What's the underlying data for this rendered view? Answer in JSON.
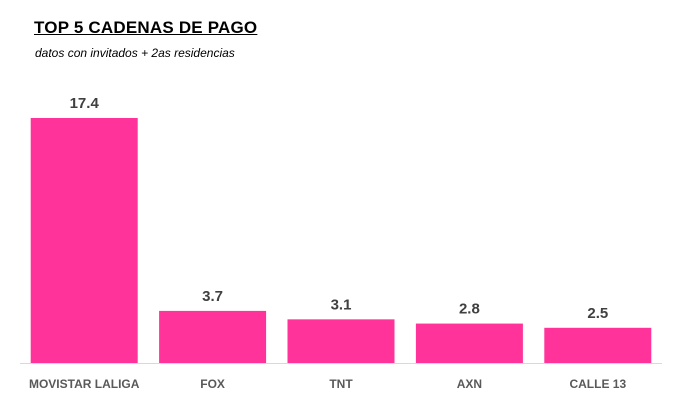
{
  "chart_data": {
    "type": "bar",
    "title": "TOP 5 CADENAS DE PAGO",
    "subtitle": "datos con invitados + 2as residencias",
    "categories": [
      "MOVISTAR LALIGA",
      "FOX",
      "TNT",
      "AXN",
      "CALLE 13"
    ],
    "values": [
      17.4,
      3.7,
      3.1,
      2.8,
      2.5
    ],
    "value_labels": [
      "17.4",
      "3.7",
      "3.1",
      "2.8",
      "2.5"
    ],
    "xlabel": "",
    "ylabel": "",
    "ylim": [
      0,
      17.4
    ],
    "grid": false,
    "legend": "none",
    "colors": {
      "bar": "#FF3399",
      "axis": "#D9D9D9",
      "value_text": "#404040",
      "category_text": "#595959"
    }
  }
}
